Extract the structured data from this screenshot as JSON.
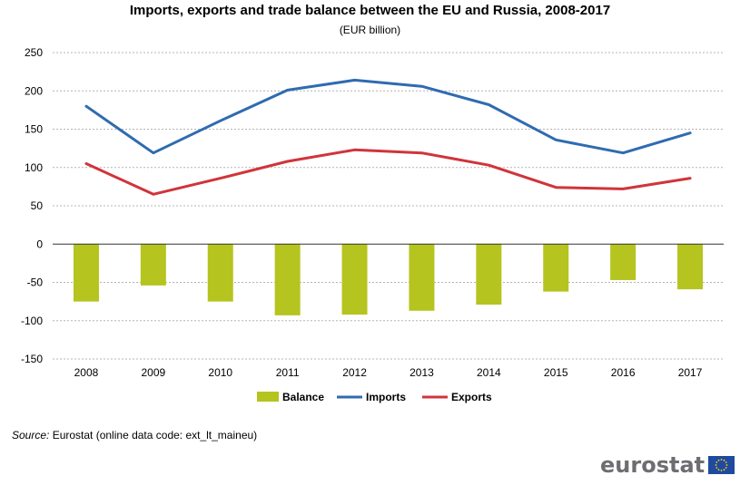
{
  "chart_data": {
    "type": "bar+line",
    "title": "Imports, exports and trade balance between the EU and Russia, 2008-2017",
    "subtitle": "(EUR billion)",
    "categories": [
      "2008",
      "2009",
      "2010",
      "2011",
      "2012",
      "2013",
      "2014",
      "2015",
      "2016",
      "2017"
    ],
    "ylim": [
      -150,
      250
    ],
    "yticks": [
      250,
      200,
      150,
      100,
      50,
      0,
      -50,
      -100,
      -150
    ],
    "grid": true,
    "legend_position": "bottom",
    "series": [
      {
        "name": "Balance",
        "type": "bar",
        "color": "#b5c41e",
        "values": [
          -75,
          -54,
          -75,
          -93,
          -92,
          -87,
          -79,
          -62,
          -47,
          -59
        ]
      },
      {
        "name": "Imports",
        "type": "line",
        "color": "#2f6bb0",
        "values": [
          180,
          119,
          161,
          201,
          214,
          206,
          182,
          136,
          119,
          145
        ]
      },
      {
        "name": "Exports",
        "type": "line",
        "color": "#d0343a",
        "values": [
          105,
          65,
          86,
          108,
          123,
          119,
          103,
          74,
          72,
          86
        ]
      }
    ]
  },
  "source": {
    "label": "Source:",
    "text": " Eurostat (online data code: ext_lt_maineu)"
  },
  "logo": {
    "text": "eurostat"
  }
}
